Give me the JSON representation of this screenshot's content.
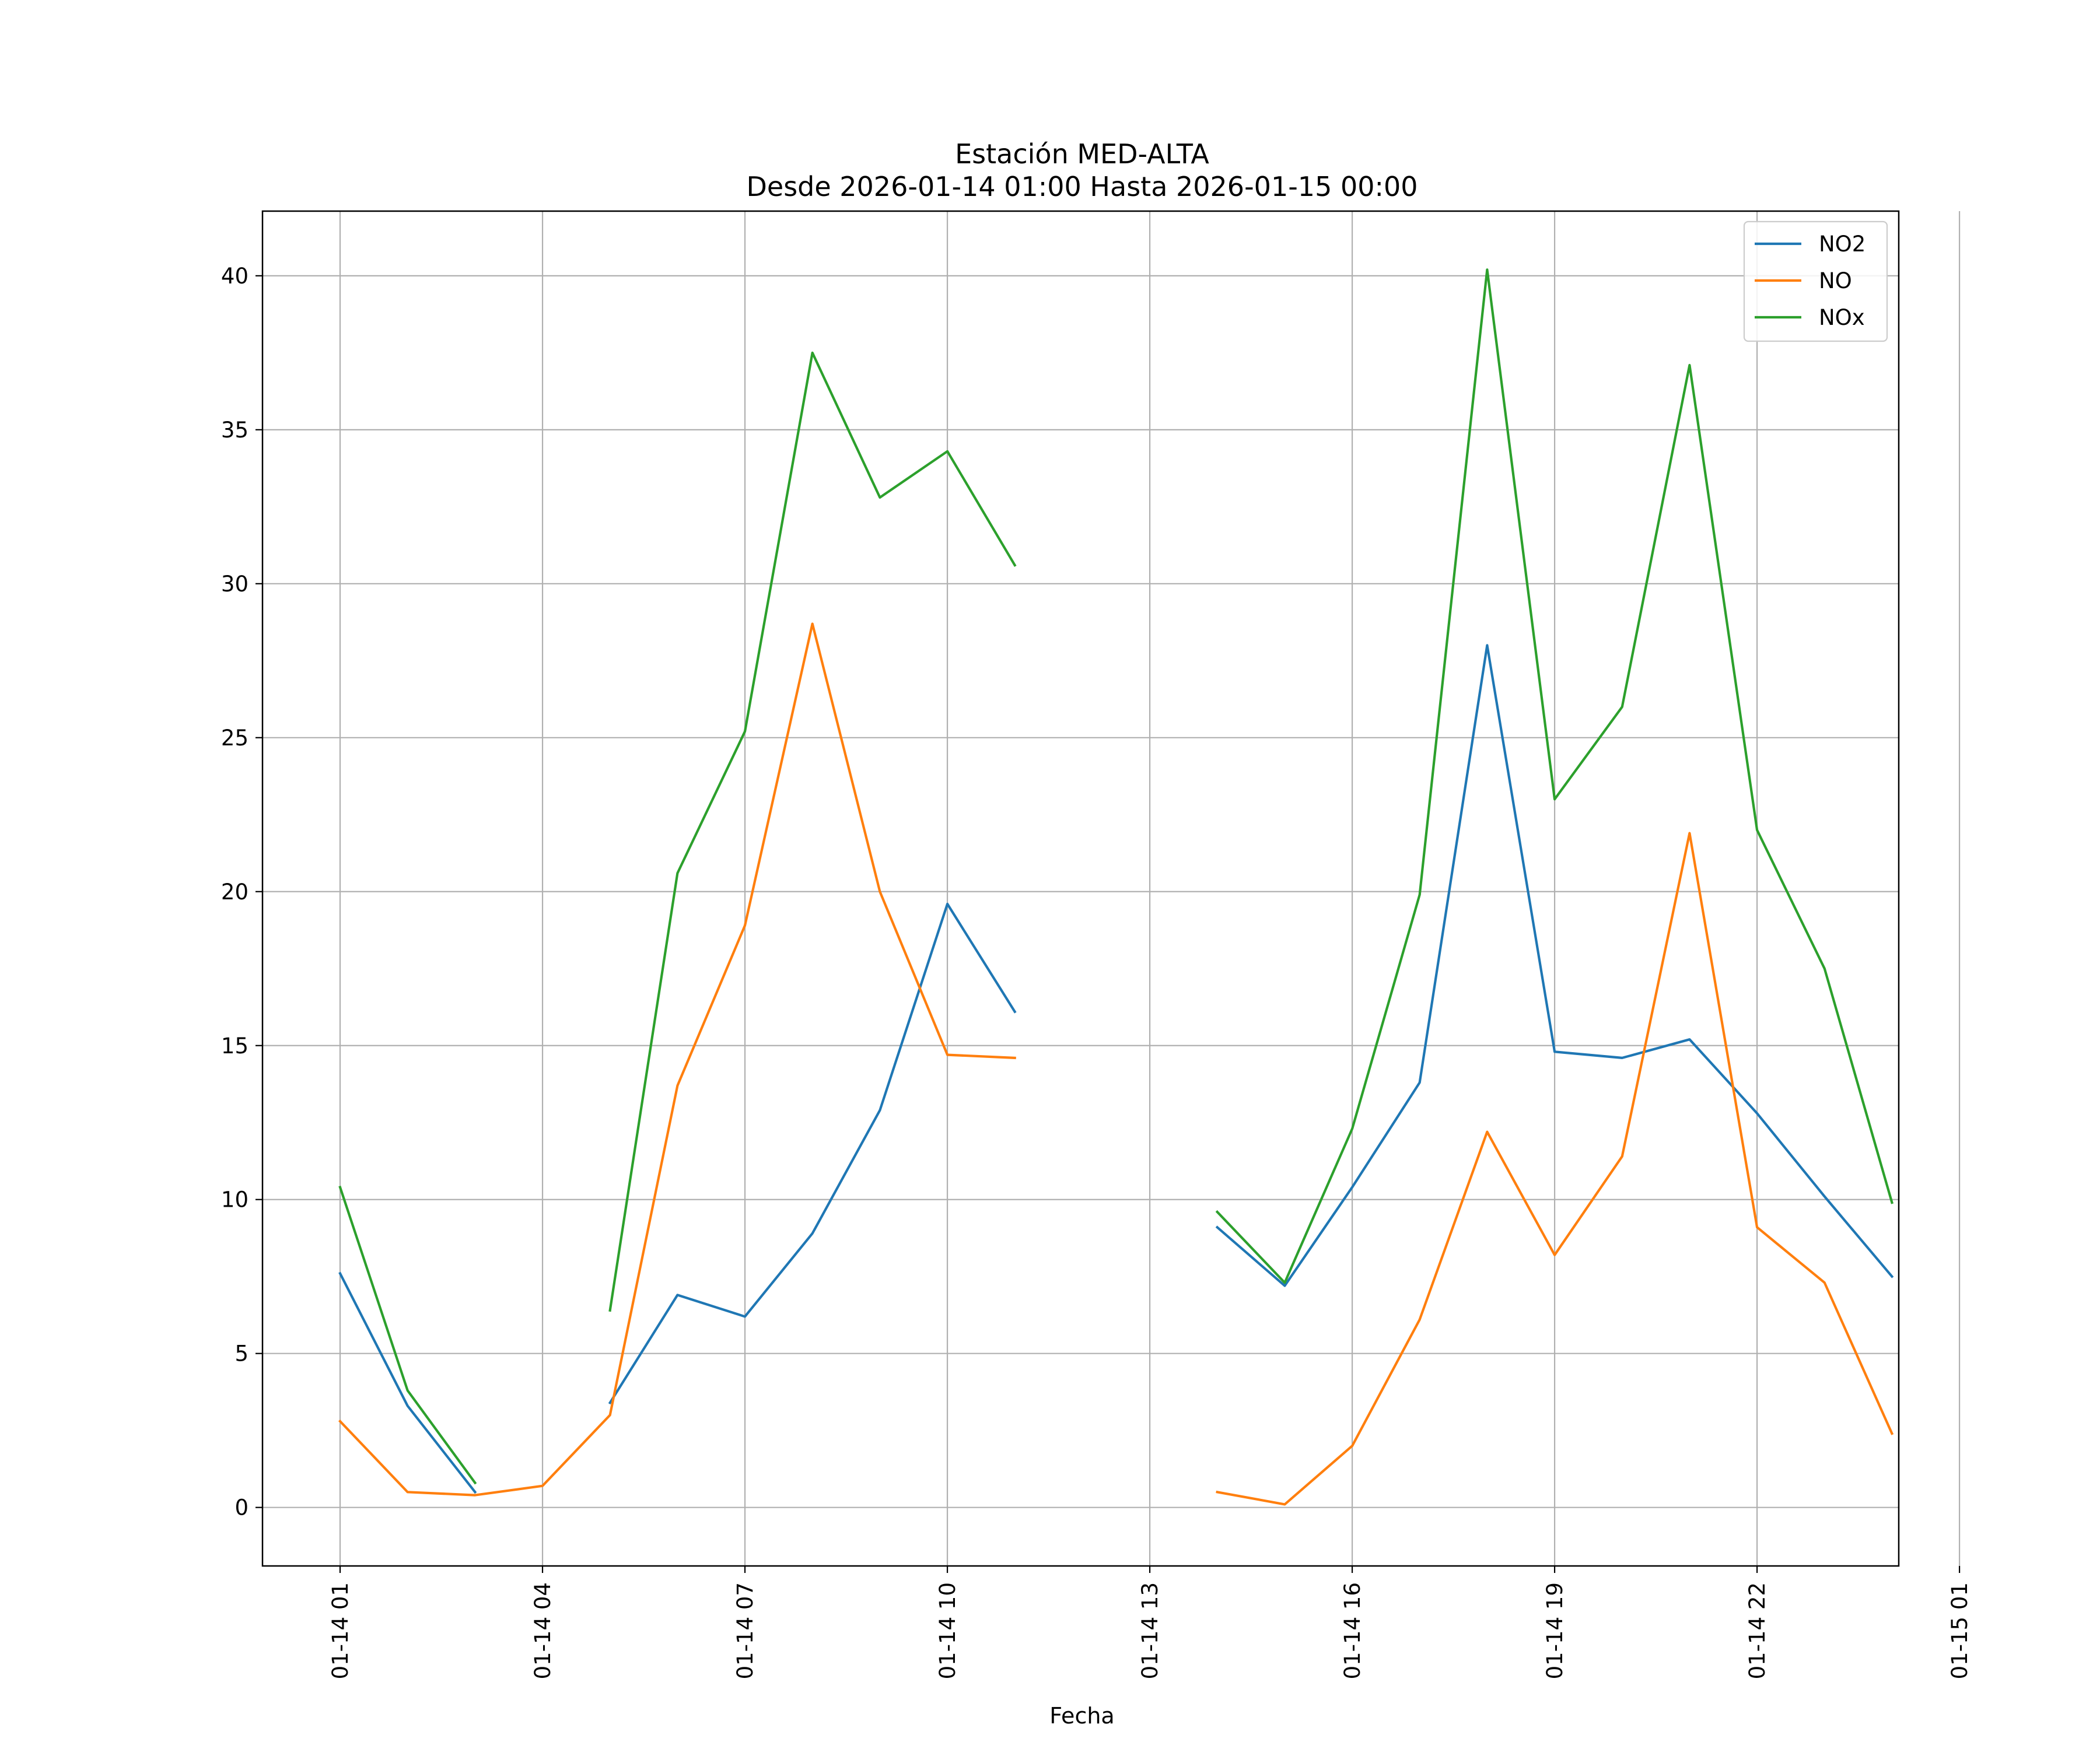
{
  "chart_data": {
    "type": "line",
    "title": "Estación MED-ALTA",
    "subtitle": "Desde 2026-01-14 01:00 Hasta 2026-01-15 00:00",
    "xlabel": "Fecha",
    "ylabel": "",
    "x": [
      "2026-01-14 01:00",
      "2026-01-14 02:00",
      "2026-01-14 03:00",
      "2026-01-14 04:00",
      "2026-01-14 05:00",
      "2026-01-14 06:00",
      "2026-01-14 07:00",
      "2026-01-14 08:00",
      "2026-01-14 09:00",
      "2026-01-14 10:00",
      "2026-01-14 11:00",
      "2026-01-14 12:00",
      "2026-01-14 13:00",
      "2026-01-14 14:00",
      "2026-01-14 15:00",
      "2026-01-14 16:00",
      "2026-01-14 17:00",
      "2026-01-14 18:00",
      "2026-01-14 19:00",
      "2026-01-14 20:00",
      "2026-01-14 21:00",
      "2026-01-14 22:00",
      "2026-01-14 23:00",
      "2026-01-15 00:00"
    ],
    "series": [
      {
        "name": "NO2",
        "color": "#1f77b4",
        "values": [
          7.6,
          3.3,
          0.5,
          null,
          3.4,
          6.9,
          6.2,
          8.9,
          12.9,
          19.6,
          16.1,
          null,
          null,
          9.1,
          7.2,
          10.4,
          13.8,
          28.0,
          14.8,
          14.6,
          15.2,
          12.8,
          10.1,
          7.5
        ]
      },
      {
        "name": "NO",
        "color": "#ff7f0e",
        "values": [
          2.8,
          0.5,
          0.4,
          0.7,
          3.0,
          13.7,
          18.9,
          28.7,
          20.0,
          14.7,
          14.6,
          null,
          null,
          0.5,
          0.1,
          2.0,
          6.1,
          12.2,
          8.2,
          11.4,
          21.9,
          9.1,
          7.3,
          2.4
        ]
      },
      {
        "name": "NOx",
        "color": "#2ca02c",
        "values": [
          10.4,
          3.8,
          0.8,
          null,
          6.4,
          20.6,
          25.2,
          37.5,
          32.8,
          34.3,
          30.6,
          null,
          null,
          9.6,
          7.3,
          12.3,
          19.9,
          40.2,
          23.0,
          26.0,
          37.1,
          22.0,
          17.5,
          9.9
        ]
      }
    ],
    "x_ticks": [
      "01-14 01",
      "01-14 04",
      "01-14 07",
      "01-14 10",
      "01-14 13",
      "01-14 16",
      "01-14 19",
      "01-14 22",
      "01-15 01"
    ],
    "y_ticks": [
      0,
      5,
      10,
      15,
      20,
      25,
      30,
      35,
      40
    ],
    "ylim": [
      -1.9,
      42.1
    ],
    "xlim": [
      "2026-01-13 23:51",
      "2026-01-15 00:06"
    ],
    "grid": true,
    "legend": "top-right"
  }
}
